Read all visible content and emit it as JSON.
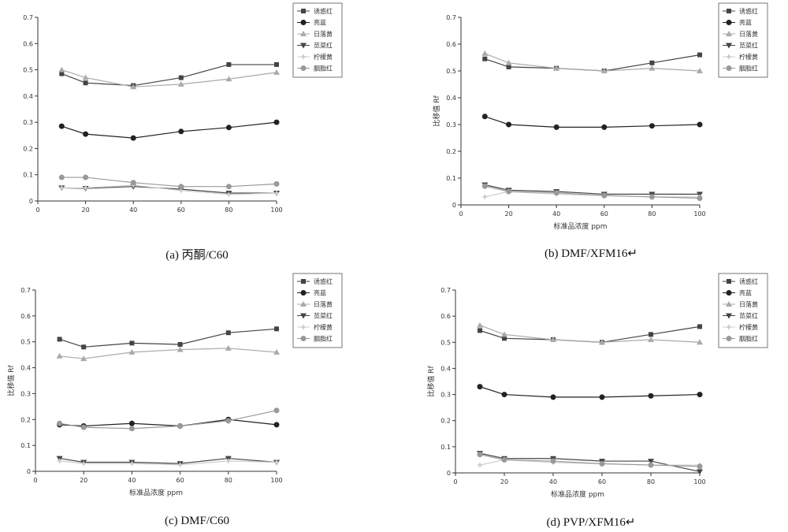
{
  "legend_entries": [
    "诱惑红",
    "亮蓝",
    "日落黄",
    "苋菜红",
    "柠檬黄",
    "胭脂红"
  ],
  "series_style": [
    {
      "marker": "square",
      "color": "#444444"
    },
    {
      "marker": "circle",
      "color": "#222222"
    },
    {
      "marker": "triangle",
      "color": "#aaaaaa"
    },
    {
      "marker": "tri-down",
      "color": "#444444"
    },
    {
      "marker": "star",
      "color": "#cccccc"
    },
    {
      "marker": "circle",
      "color": "#999999"
    }
  ],
  "chart_data": [
    {
      "type": "line",
      "caption": "(a) 丙酮/C60",
      "xlabel": "",
      "ylabel": "",
      "xlim": [
        0,
        100
      ],
      "ylim": [
        0,
        0.7
      ],
      "xticks": [
        0,
        20,
        40,
        60,
        80,
        100
      ],
      "yticks": [
        0,
        0.1,
        0.2,
        0.3,
        0.4,
        0.5,
        0.6,
        0.7
      ],
      "x": [
        10,
        20,
        40,
        60,
        80,
        100
      ],
      "series": [
        {
          "name": "诱惑红",
          "values": [
            0.485,
            0.45,
            0.44,
            0.47,
            0.52,
            0.52
          ]
        },
        {
          "name": "亮蓝",
          "values": [
            0.285,
            0.255,
            0.24,
            0.265,
            0.28,
            0.3
          ]
        },
        {
          "name": "日落黄",
          "values": [
            0.5,
            0.47,
            0.435,
            0.445,
            0.465,
            0.49
          ]
        },
        {
          "name": "苋菜红",
          "values": [
            0.05,
            0.048,
            0.055,
            0.045,
            0.03,
            0.03
          ]
        },
        {
          "name": "柠檬黄",
          "values": [
            0.05,
            0.05,
            0.06,
            0.04,
            0.025,
            0.03
          ]
        },
        {
          "name": "胭脂红",
          "values": [
            0.09,
            0.09,
            0.07,
            0.055,
            0.055,
            0.065
          ]
        }
      ]
    },
    {
      "type": "line",
      "caption": "(b) DMF/XFM16↵",
      "xlabel": "标准品浓度 ppm",
      "ylabel": "比移值 Rf",
      "xlim": [
        0,
        100
      ],
      "ylim": [
        0,
        0.7
      ],
      "xticks": [
        0,
        20,
        40,
        60,
        80,
        100
      ],
      "yticks": [
        0,
        0.1,
        0.2,
        0.3,
        0.4,
        0.5,
        0.6,
        0.7
      ],
      "x": [
        10,
        20,
        40,
        60,
        80,
        100
      ],
      "series": [
        {
          "name": "诱惑红",
          "values": [
            0.545,
            0.515,
            0.51,
            0.5,
            0.53,
            0.56
          ]
        },
        {
          "name": "亮蓝",
          "values": [
            0.33,
            0.3,
            0.29,
            0.29,
            0.295,
            0.3
          ]
        },
        {
          "name": "日落黄",
          "values": [
            0.565,
            0.53,
            0.51,
            0.5,
            0.51,
            0.5
          ]
        },
        {
          "name": "苋菜红",
          "values": [
            0.075,
            0.055,
            0.05,
            0.04,
            0.04,
            0.04
          ]
        },
        {
          "name": "柠檬黄",
          "values": [
            0.03,
            0.05,
            0.04,
            0.035,
            0.03,
            0.03
          ]
        },
        {
          "name": "胭脂红",
          "values": [
            0.07,
            0.05,
            0.045,
            0.035,
            0.03,
            0.025
          ]
        }
      ]
    },
    {
      "type": "line",
      "caption": "(c) DMF/C60",
      "xlabel": "标准品浓度 ppm",
      "ylabel": "比移值 Rf",
      "xlim": [
        0,
        100
      ],
      "ylim": [
        0,
        0.7
      ],
      "xticks": [
        0,
        20,
        40,
        60,
        80,
        100
      ],
      "yticks": [
        0,
        0.1,
        0.2,
        0.3,
        0.4,
        0.5,
        0.6,
        0.7
      ],
      "x": [
        10,
        20,
        40,
        60,
        80,
        100
      ],
      "series": [
        {
          "name": "诱惑红",
          "values": [
            0.51,
            0.48,
            0.495,
            0.49,
            0.535,
            0.55
          ]
        },
        {
          "name": "亮蓝",
          "values": [
            0.18,
            0.175,
            0.185,
            0.175,
            0.2,
            0.18
          ]
        },
        {
          "name": "日落黄",
          "values": [
            0.445,
            0.435,
            0.46,
            0.47,
            0.475,
            0.46
          ]
        },
        {
          "name": "苋菜红",
          "values": [
            0.05,
            0.035,
            0.035,
            0.03,
            0.05,
            0.035
          ]
        },
        {
          "name": "柠檬黄",
          "values": [
            0.04,
            0.03,
            0.03,
            0.025,
            0.04,
            0.035
          ]
        },
        {
          "name": "胭脂红",
          "values": [
            0.185,
            0.17,
            0.165,
            0.175,
            0.195,
            0.235
          ]
        }
      ]
    },
    {
      "type": "line",
      "caption": "(d) PVP/XFM16↵",
      "xlabel": "标准品浓度 ppm",
      "ylabel": "比移值 Rf",
      "xlim": [
        0,
        100
      ],
      "ylim": [
        0,
        0.7
      ],
      "xticks": [
        0,
        20,
        40,
        60,
        80,
        100
      ],
      "yticks": [
        0,
        0.1,
        0.2,
        0.3,
        0.4,
        0.5,
        0.6,
        0.7
      ],
      "x": [
        10,
        20,
        40,
        60,
        80,
        100
      ],
      "series": [
        {
          "name": "诱惑红",
          "values": [
            0.545,
            0.515,
            0.51,
            0.5,
            0.53,
            0.56
          ]
        },
        {
          "name": "亮蓝",
          "values": [
            0.33,
            0.3,
            0.29,
            0.29,
            0.295,
            0.3
          ]
        },
        {
          "name": "日落黄",
          "values": [
            0.565,
            0.53,
            0.51,
            0.5,
            0.51,
            0.5
          ]
        },
        {
          "name": "苋菜红",
          "values": [
            0.075,
            0.055,
            0.055,
            0.045,
            0.045,
            0.005
          ]
        },
        {
          "name": "柠檬黄",
          "values": [
            0.03,
            0.05,
            0.04,
            0.035,
            0.03,
            0.03
          ]
        },
        {
          "name": "胭脂红",
          "values": [
            0.07,
            0.05,
            0.045,
            0.035,
            0.03,
            0.025
          ]
        }
      ]
    }
  ]
}
